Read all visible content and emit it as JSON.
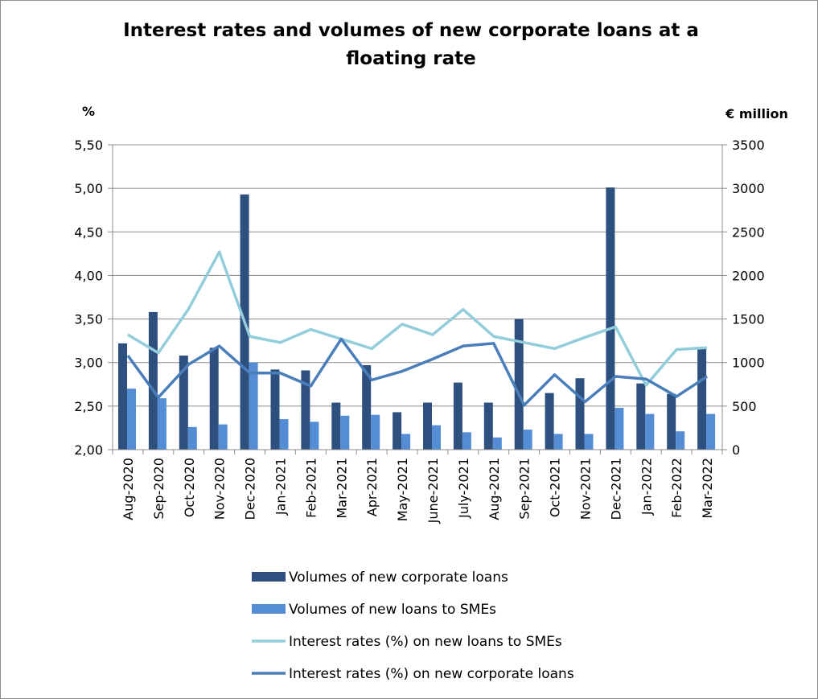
{
  "chart_data": {
    "type": "bar+line",
    "title": "Interest rates and volumes of new corporate loans at a floating rate",
    "ylabel_left": "%",
    "ylabel_right": "€ million",
    "ylim_left": [
      2.0,
      5.5
    ],
    "ylim_right": [
      0,
      3500
    ],
    "yticks_left": [
      "2,00",
      "2,50",
      "3,00",
      "3,50",
      "4,00",
      "4,50",
      "5,00",
      "5,50"
    ],
    "yticks_right": [
      "0",
      "500",
      "1000",
      "1500",
      "2000",
      "2500",
      "3000",
      "3500"
    ],
    "grid": "horizontal",
    "legend_position": "bottom",
    "categories": [
      "Aug-2020",
      "Sep-2020",
      "Oct-2020",
      "Nov-2020",
      "Dec-2020",
      "Jan-2021",
      "Feb-2021",
      "Mar-2021",
      "Apr-2021",
      "May-2021",
      "June-2021",
      "July-2021",
      "Aug-2021",
      "Sep-2021",
      "Oct-2021",
      "Nov-2021",
      "Dec-2021",
      "Jan-2022",
      "Feb-2022",
      "Mar-2022"
    ],
    "series": [
      {
        "name": "Volumes of new corporate loans",
        "kind": "bar",
        "axis": "right",
        "color": "#2e507e",
        "values": [
          1220,
          1580,
          1080,
          1170,
          2930,
          920,
          910,
          540,
          970,
          430,
          540,
          770,
          540,
          1500,
          650,
          820,
          3010,
          760,
          640,
          1170
        ]
      },
      {
        "name": "Volumes of new loans to SMEs",
        "kind": "bar",
        "axis": "right",
        "color": "#548dd4",
        "values": [
          700,
          590,
          260,
          290,
          1000,
          350,
          320,
          390,
          400,
          180,
          280,
          200,
          140,
          230,
          180,
          180,
          480,
          410,
          210,
          410
        ]
      },
      {
        "name": "Interest rates (%) on new loans to SMEs",
        "kind": "line",
        "axis": "left",
        "color": "#92cddc",
        "values": [
          3.32,
          3.11,
          3.62,
          4.27,
          3.3,
          3.23,
          3.38,
          3.27,
          3.16,
          3.44,
          3.32,
          3.61,
          3.3,
          3.23,
          3.16,
          3.29,
          3.41,
          2.74,
          3.15,
          3.17
        ]
      },
      {
        "name": "Interest rates (%) on new corporate loans",
        "kind": "line",
        "axis": "left",
        "color": "#4a7ebb",
        "values": [
          3.08,
          2.6,
          2.98,
          3.19,
          2.88,
          2.88,
          2.73,
          3.27,
          2.8,
          2.9,
          3.04,
          3.19,
          3.22,
          2.51,
          2.86,
          2.55,
          2.84,
          2.81,
          2.61,
          2.84
        ]
      }
    ]
  }
}
